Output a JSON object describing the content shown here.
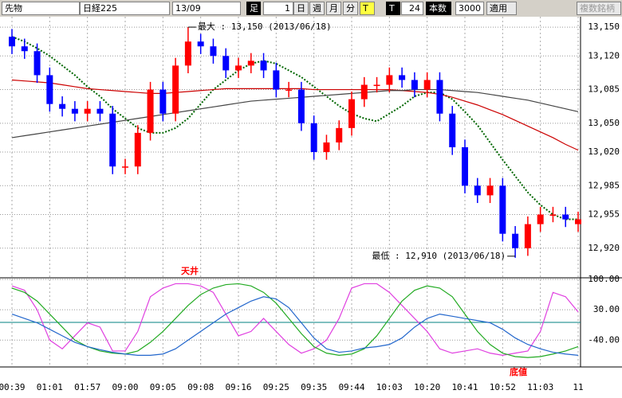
{
  "toolbar": [
    "先物",
    "日経225",
    "13/09",
    "足",
    "1",
    "日",
    "週",
    "月",
    "分",
    "T",
    "T",
    "24",
    "本数",
    "3000",
    "適用",
    "複数銘柄"
  ],
  "chart_data": [
    {
      "type": "candlestick",
      "categories": [
        "00:39",
        null,
        null,
        "01:01",
        null,
        null,
        "01:57",
        null,
        null,
        "09:00",
        null,
        null,
        "09:05",
        null,
        null,
        "09:08",
        null,
        null,
        "09:16",
        null,
        null,
        "09:25",
        null,
        null,
        "09:35",
        null,
        null,
        "09:44",
        null,
        null,
        "10:03",
        null,
        null,
        "10:20",
        null,
        null,
        "10:41",
        null,
        null,
        "10:52",
        null,
        null,
        "11:03",
        null,
        null,
        "11"
      ],
      "open": [
        13140,
        13130,
        13125,
        13100,
        13070,
        13065,
        13060,
        13065,
        13060,
        13005,
        13005,
        13040,
        13085,
        13060,
        13110,
        13135,
        13130,
        13120,
        13105,
        13110,
        13115,
        13105,
        13085,
        13085,
        13050,
        13020,
        13030,
        13045,
        13075,
        13090,
        13090,
        13100,
        13095,
        13085,
        13095,
        13060,
        13025,
        12985,
        12975,
        12985,
        12935,
        12920,
        12945,
        12955,
        12955,
        12945
      ],
      "high": [
        13148,
        13138,
        13133,
        13108,
        13078,
        13073,
        13073,
        13073,
        13068,
        13013,
        13048,
        13093,
        13093,
        13118,
        13150,
        13143,
        13138,
        13128,
        13118,
        13123,
        13123,
        13113,
        13093,
        13093,
        13058,
        13038,
        13053,
        13083,
        13098,
        13098,
        13108,
        13108,
        13103,
        13103,
        13103,
        13068,
        13033,
        12993,
        12993,
        12993,
        12943,
        12953,
        12963,
        12963,
        12963,
        12958
      ],
      "low": [
        13122,
        13117,
        13092,
        13062,
        13057,
        13052,
        13052,
        13052,
        12997,
        12997,
        12997,
        13032,
        13052,
        13052,
        13102,
        13122,
        13112,
        13097,
        13097,
        13102,
        13097,
        13077,
        13077,
        13042,
        13012,
        13012,
        13022,
        13037,
        13067,
        13082,
        13082,
        13087,
        13077,
        13077,
        13052,
        13017,
        12977,
        12967,
        12967,
        12927,
        12910,
        12912,
        12937,
        12947,
        12942,
        12937
      ],
      "close": [
        13130,
        13125,
        13100,
        13070,
        13065,
        13060,
        13065,
        13060,
        13005,
        13005,
        13040,
        13085,
        13060,
        13110,
        13135,
        13130,
        13120,
        13105,
        13110,
        13115,
        13105,
        13085,
        13085,
        13050,
        13020,
        13030,
        13045,
        13075,
        13090,
        13090,
        13100,
        13095,
        13085,
        13095,
        13060,
        13025,
        12985,
        12975,
        12985,
        12935,
        12920,
        12945,
        12955,
        12955,
        12950,
        12950
      ],
      "up_color": "#ff0000",
      "down_color": "#0000ff",
      "series": [
        {
          "color": "#006600",
          "dashed": true,
          "values": [
            13140,
            13135,
            13128,
            13120,
            13110,
            13100,
            13088,
            13078,
            13065,
            13055,
            13045,
            13040,
            13040,
            13045,
            13055,
            13070,
            13085,
            13095,
            13105,
            13112,
            13115,
            13112,
            13105,
            13098,
            13088,
            13078,
            13068,
            13060,
            13055,
            13052,
            13060,
            13068,
            13078,
            13082,
            13082,
            13075,
            13062,
            13048,
            13030,
            13012,
            12995,
            12978,
            12965,
            12955,
            12950,
            12950
          ]
        },
        {
          "color": "#cc0000",
          "dashed": false,
          "values": [
            13095,
            13094,
            13093,
            13092,
            13090,
            13088,
            13086,
            13085,
            13084,
            13083,
            13082,
            13081,
            13081,
            13082,
            13083,
            13084,
            13085,
            13086,
            13086,
            13086,
            13086,
            13086,
            13086,
            13086,
            13085,
            13085,
            13085,
            13085,
            13085,
            13085,
            13085,
            13084,
            13083,
            13082,
            13080,
            13077,
            13073,
            13069,
            13064,
            13059,
            13053,
            13047,
            13041,
            13035,
            13028,
            13022
          ]
        },
        {
          "color": "#444444",
          "dashed": false,
          "values": [
            13035,
            13037,
            13039,
            13041,
            13043,
            13045,
            13047,
            13049,
            13051,
            13053,
            13055,
            13057,
            13059,
            13061,
            13063,
            13065,
            13067,
            13069,
            13071,
            13073,
            13074,
            13075,
            13076,
            13077,
            13078,
            13079,
            13080,
            13081,
            13082,
            13083,
            13084,
            13084,
            13085,
            13085,
            13085,
            13084,
            13083,
            13082,
            13080,
            13078,
            13076,
            13074,
            13071,
            13068,
            13065,
            13062
          ]
        }
      ],
      "ylim": [
        12890,
        13160
      ],
      "yticks": [
        {
          "value": 12920,
          "label": "12,920"
        },
        {
          "value": 12955,
          "label": "12,955"
        },
        {
          "value": 12985,
          "label": "12,985"
        },
        {
          "value": 13020,
          "label": "13,020"
        },
        {
          "value": 13050,
          "label": "13,050"
        },
        {
          "value": 13085,
          "label": "13,085"
        },
        {
          "value": 13120,
          "label": "13,120"
        },
        {
          "value": 13150,
          "label": "13,150"
        }
      ],
      "annotations": [
        "最大 : 13,150 (2013/06/18)",
        "最低 : 12,910 (2013/06/18)"
      ],
      "grid": true
    },
    {
      "type": "line",
      "series": [
        {
          "color": "#e040e0",
          "values": [
            85,
            75,
            30,
            -40,
            -60,
            -30,
            0,
            -10,
            -65,
            -65,
            -20,
            60,
            80,
            90,
            90,
            85,
            70,
            20,
            -30,
            -20,
            10,
            -20,
            -50,
            -70,
            -60,
            -40,
            10,
            80,
            90,
            90,
            70,
            40,
            10,
            -20,
            -60,
            -70,
            -65,
            -60,
            -70,
            -75,
            -70,
            -65,
            -20,
            70,
            60,
            25
          ]
        },
        {
          "color": "#22aa22",
          "values": [
            80,
            70,
            50,
            20,
            -10,
            -40,
            -55,
            -65,
            -70,
            -72,
            -65,
            -45,
            -20,
            10,
            40,
            65,
            80,
            88,
            90,
            85,
            70,
            45,
            10,
            -25,
            -55,
            -70,
            -75,
            -72,
            -60,
            -30,
            10,
            50,
            75,
            85,
            80,
            60,
            20,
            -20,
            -50,
            -70,
            -78,
            -80,
            -78,
            -72,
            -65,
            -55
          ]
        },
        {
          "color": "#2266cc",
          "values": [
            20,
            10,
            0,
            -15,
            -30,
            -45,
            -55,
            -62,
            -68,
            -72,
            -75,
            -75,
            -72,
            -60,
            -40,
            -20,
            0,
            20,
            35,
            50,
            60,
            55,
            35,
            0,
            -35,
            -60,
            -68,
            -65,
            -58,
            -55,
            -50,
            -35,
            -10,
            10,
            20,
            15,
            10,
            5,
            0,
            -15,
            -35,
            -50,
            -60,
            -68,
            -72,
            -75
          ]
        }
      ],
      "ylim": [
        -100,
        100
      ],
      "yticks": [
        {
          "value": 100,
          "label": "100.00"
        },
        {
          "value": 30,
          "label": "30.00"
        },
        {
          "value": -40,
          "label": "-40.00"
        }
      ],
      "annotations": [
        "天井",
        "底値"
      ],
      "grid": true
    }
  ]
}
